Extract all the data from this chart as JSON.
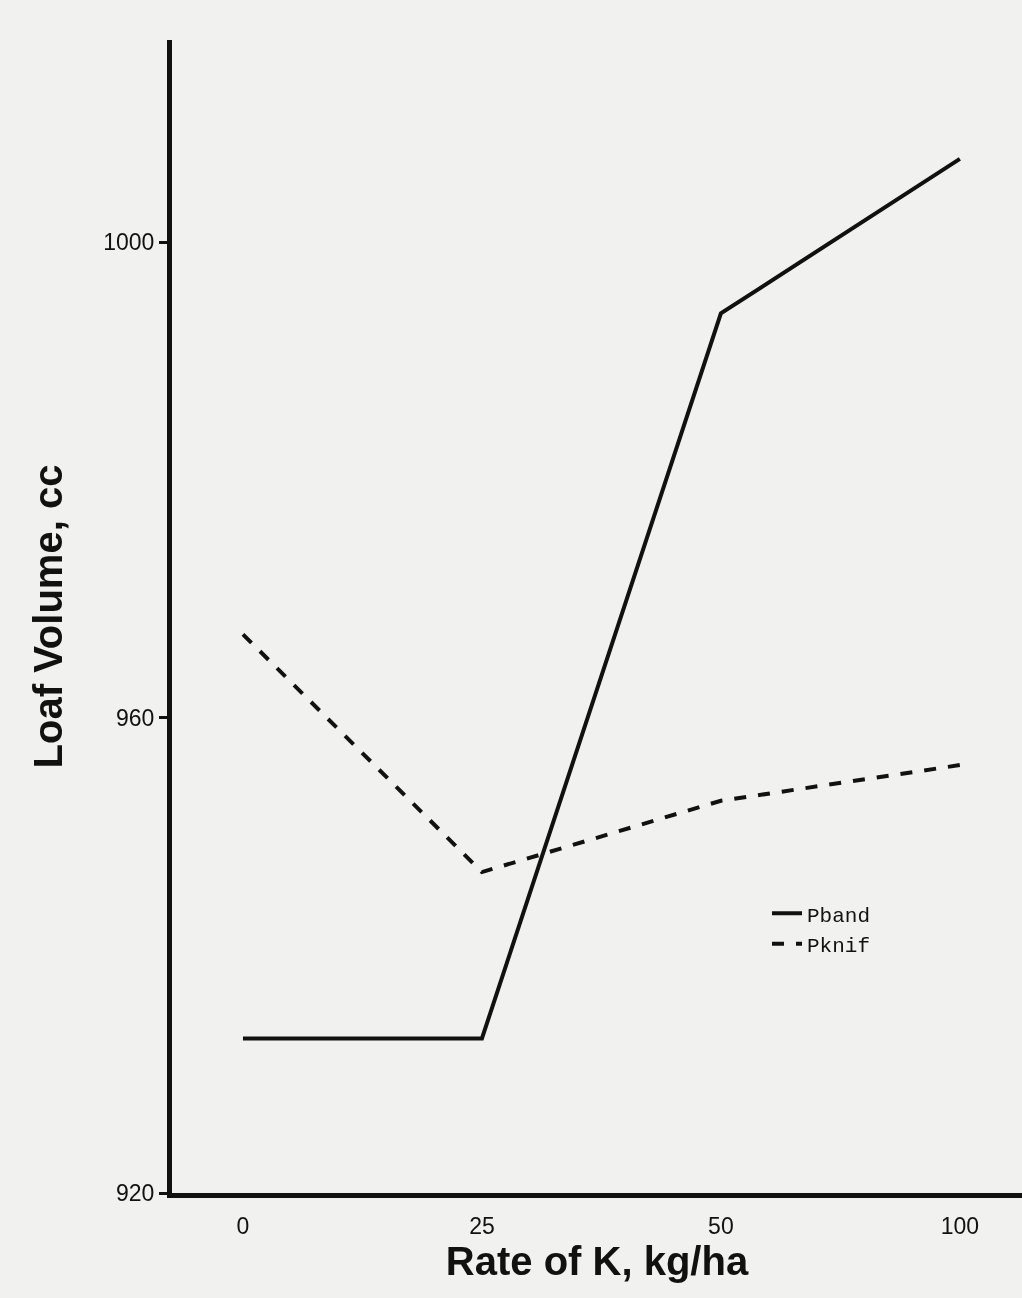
{
  "chart_data": {
    "type": "line",
    "xlabel": "Rate of K, kg/ha",
    "ylabel": "Loaf Volume, cc",
    "categories": [
      "0",
      "25",
      "50",
      "100"
    ],
    "series": [
      {
        "name": "Pband",
        "color": "#111111",
        "values": [
          933,
          933,
          994,
          1007
        ],
        "line_style": "solid"
      },
      {
        "name": "Pknif",
        "color": "#111111",
        "values": [
          967,
          947,
          953,
          956
        ],
        "line_style": "dashed"
      }
    ],
    "ylim": [
      920,
      1017
    ],
    "yticks": [
      920,
      960,
      1000
    ],
    "grid": false,
    "legend": "bottom right",
    "marker": "none"
  }
}
